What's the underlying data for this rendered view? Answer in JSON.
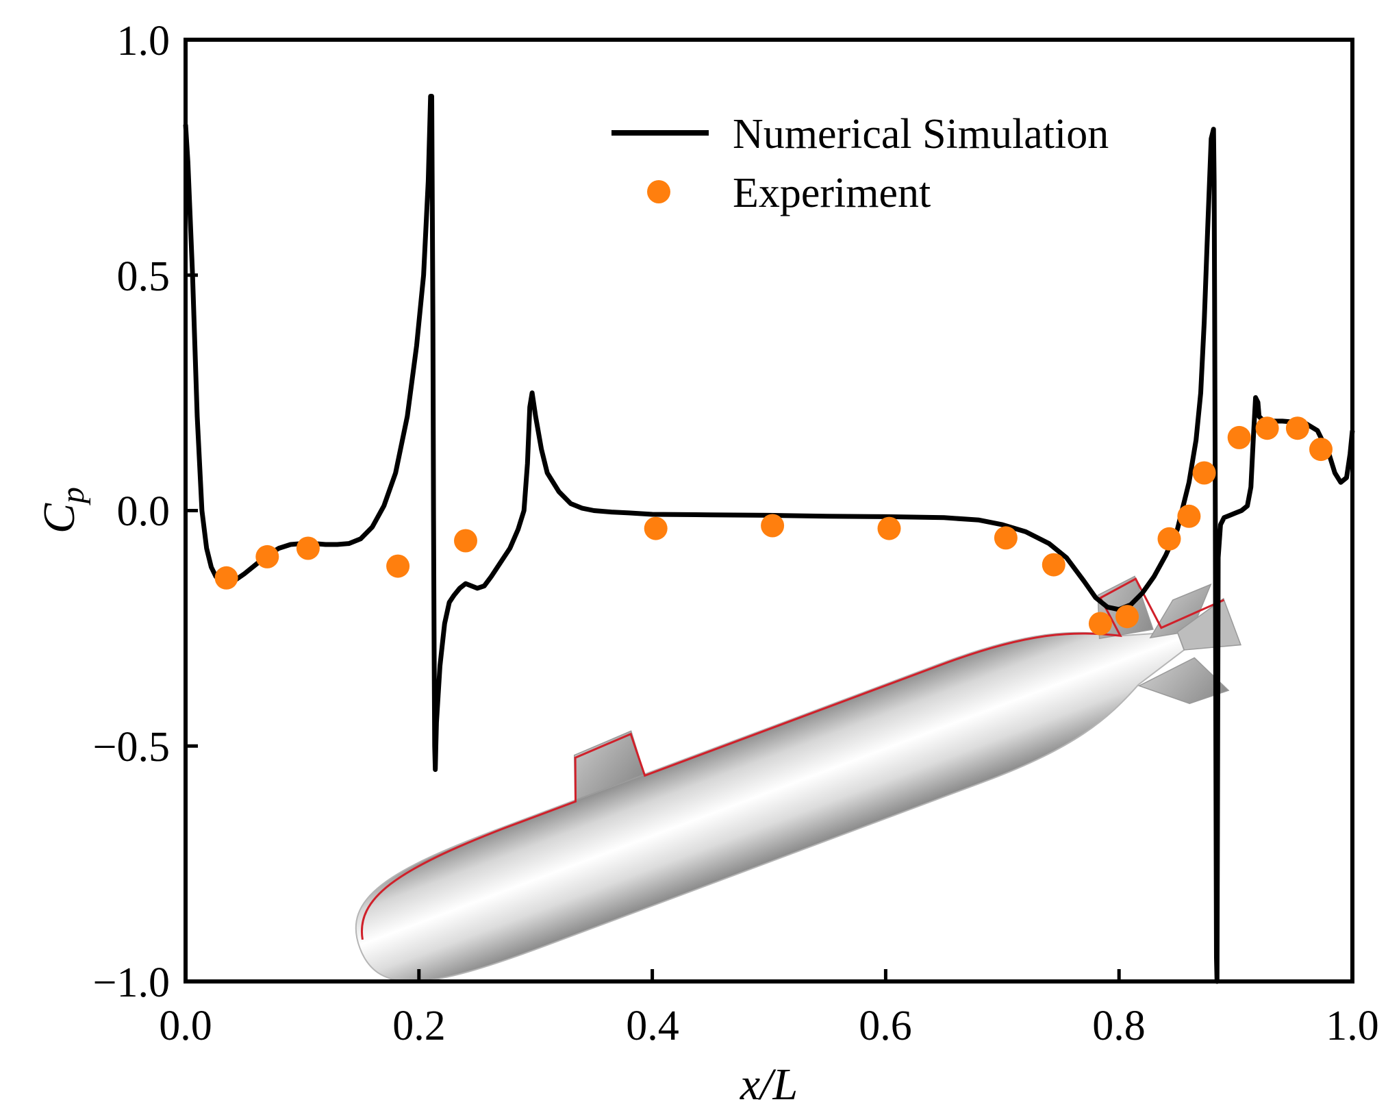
{
  "chart_data": {
    "type": "line",
    "xlabel": "x/L",
    "ylabel": "C",
    "ylabel_sub": "p",
    "xlim": [
      0.0,
      1.0
    ],
    "ylim": [
      -1.0,
      1.0
    ],
    "xticks": [
      "0.0",
      "0.2",
      "0.4",
      "0.6",
      "0.8",
      "1.0"
    ],
    "yticks": [
      "1.0",
      "0.5",
      "0.0",
      "−0.5",
      "−1.0"
    ],
    "legend_position": "top-right",
    "grid": false,
    "colors": {
      "simulation": "#000000",
      "experiment": "#ff7f0e",
      "hull_line": "#d0202a"
    },
    "series": [
      {
        "name": "Numerical Simulation",
        "kind": "line",
        "x": [
          0.0,
          0.002,
          0.006,
          0.01,
          0.014,
          0.018,
          0.022,
          0.026,
          0.03,
          0.035,
          0.04,
          0.05,
          0.06,
          0.07,
          0.08,
          0.09,
          0.1,
          0.11,
          0.12,
          0.13,
          0.14,
          0.15,
          0.16,
          0.17,
          0.18,
          0.19,
          0.198,
          0.204,
          0.208,
          0.21,
          0.211,
          0.212,
          0.2125,
          0.213,
          0.2135,
          0.214,
          0.2145,
          0.215,
          0.218,
          0.222,
          0.226,
          0.23,
          0.235,
          0.24,
          0.245,
          0.25,
          0.256,
          0.262,
          0.27,
          0.278,
          0.285,
          0.29,
          0.293,
          0.295,
          0.297,
          0.3,
          0.305,
          0.31,
          0.32,
          0.33,
          0.34,
          0.35,
          0.365,
          0.38,
          0.4,
          0.45,
          0.5,
          0.55,
          0.6,
          0.65,
          0.68,
          0.7,
          0.72,
          0.74,
          0.755,
          0.77,
          0.78,
          0.79,
          0.8,
          0.81,
          0.82,
          0.83,
          0.84,
          0.85,
          0.86,
          0.866,
          0.87,
          0.873,
          0.876,
          0.879,
          0.881,
          0.8815,
          0.882,
          0.8825,
          0.883,
          0.8835,
          0.884,
          0.885,
          0.887,
          0.89,
          0.895,
          0.9,
          0.905,
          0.91,
          0.913,
          0.915,
          0.917,
          0.919,
          0.92,
          0.922,
          0.925,
          0.93,
          0.94,
          0.95,
          0.96,
          0.97,
          0.98,
          0.985,
          0.99,
          0.995,
          0.998,
          1.0
        ],
        "y": [
          0.82,
          0.74,
          0.5,
          0.2,
          0.0,
          -0.08,
          -0.12,
          -0.14,
          -0.15,
          -0.153,
          -0.152,
          -0.135,
          -0.115,
          -0.095,
          -0.08,
          -0.072,
          -0.07,
          -0.07,
          -0.072,
          -0.072,
          -0.07,
          -0.06,
          -0.035,
          0.01,
          0.08,
          0.2,
          0.35,
          0.5,
          0.7,
          0.88,
          0.88,
          0.4,
          0.0,
          -0.3,
          -0.5,
          -0.55,
          -0.5,
          -0.45,
          -0.33,
          -0.24,
          -0.195,
          -0.18,
          -0.165,
          -0.155,
          -0.16,
          -0.165,
          -0.16,
          -0.14,
          -0.11,
          -0.08,
          -0.04,
          0.0,
          0.1,
          0.22,
          0.25,
          0.2,
          0.13,
          0.08,
          0.04,
          0.015,
          0.005,
          0.0,
          -0.003,
          -0.005,
          -0.008,
          -0.009,
          -0.01,
          -0.012,
          -0.013,
          -0.015,
          -0.02,
          -0.03,
          -0.045,
          -0.07,
          -0.1,
          -0.15,
          -0.185,
          -0.205,
          -0.21,
          -0.2,
          -0.175,
          -0.14,
          -0.095,
          -0.04,
          0.06,
          0.15,
          0.25,
          0.4,
          0.6,
          0.79,
          0.81,
          0.7,
          0.4,
          0.0,
          -0.5,
          -0.95,
          -1.0,
          -0.1,
          -0.03,
          -0.015,
          -0.01,
          -0.005,
          0.0,
          0.01,
          0.05,
          0.15,
          0.24,
          0.23,
          0.2,
          0.195,
          0.19,
          0.19,
          0.19,
          0.188,
          0.185,
          0.17,
          0.12,
          0.08,
          0.06,
          0.07,
          0.12,
          0.17
        ]
      },
      {
        "name": "Experiment",
        "kind": "scatter",
        "x": [
          0.035,
          0.07,
          0.105,
          0.182,
          0.24,
          0.403,
          0.503,
          0.603,
          0.703,
          0.744,
          0.784,
          0.807,
          0.843,
          0.86,
          0.873,
          0.903,
          0.927,
          0.953,
          0.973
        ],
        "y": [
          -0.143,
          -0.098,
          -0.08,
          -0.118,
          -0.064,
          -0.038,
          -0.032,
          -0.038,
          -0.058,
          -0.115,
          -0.24,
          -0.225,
          -0.06,
          -0.012,
          0.08,
          0.155,
          0.175,
          0.175,
          0.13
        ]
      }
    ]
  }
}
